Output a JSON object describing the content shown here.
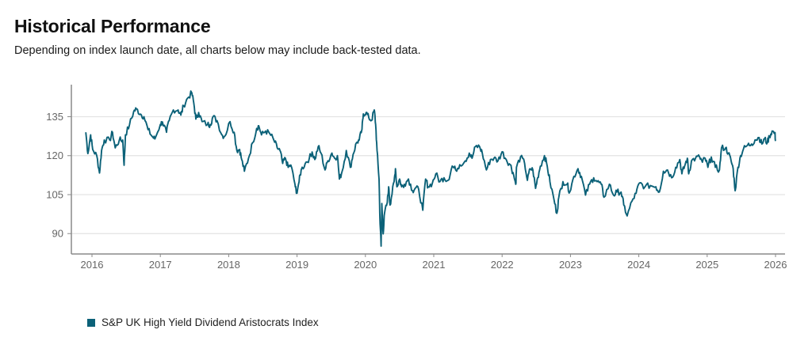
{
  "header": {
    "title": "Historical Performance",
    "subtitle": "Depending on index launch date, all charts below may include back-tested data."
  },
  "colors": {
    "series": "#0b6178",
    "grid": "#e3e3e3",
    "axis": "#8a8a8a",
    "tick_text": "#666666"
  },
  "chart_data": {
    "type": "line",
    "title": "Historical Performance",
    "xlabel": "",
    "ylabel": "",
    "xlim": [
      2015.7,
      2026.0
    ],
    "ylim": [
      80,
      148
    ],
    "x_ticks": [
      2016,
      2017,
      2018,
      2019,
      2020,
      2021,
      2022,
      2023,
      2024,
      2025,
      2026
    ],
    "x_tick_labels": [
      "2016",
      "2017",
      "2018",
      "2019",
      "2020",
      "2021",
      "2022",
      "2023",
      "2024",
      "2025",
      "2026"
    ],
    "y_ticks": [
      90,
      105,
      120,
      135
    ],
    "y_tick_labels": [
      "90",
      "105",
      "120",
      "135"
    ],
    "grid": "horizontal",
    "legend_position": "bottom-left",
    "series": [
      {
        "name": "S&P UK High Yield Dividend Aristocrats Index",
        "points": [
          [
            2015.91,
            129.0
          ],
          [
            2015.94,
            120.8
          ],
          [
            2015.98,
            128.0
          ],
          [
            2016.01,
            122.4
          ],
          [
            2016.07,
            120.0
          ],
          [
            2016.11,
            113.3
          ],
          [
            2016.14,
            122.0
          ],
          [
            2016.18,
            126.0
          ],
          [
            2016.26,
            126.0
          ],
          [
            2016.3,
            129.0
          ],
          [
            2016.34,
            123.0
          ],
          [
            2016.4,
            126.0
          ],
          [
            2016.45,
            126.0
          ],
          [
            2016.47,
            116.3
          ],
          [
            2016.49,
            128.0
          ],
          [
            2016.55,
            132.0
          ],
          [
            2016.61,
            137.0
          ],
          [
            2016.65,
            138.0
          ],
          [
            2016.71,
            136.0
          ],
          [
            2016.76,
            135.0
          ],
          [
            2016.82,
            130.0
          ],
          [
            2016.88,
            127.4
          ],
          [
            2016.92,
            126.4
          ],
          [
            2017.0,
            132.0
          ],
          [
            2017.03,
            133.0
          ],
          [
            2017.09,
            129.0
          ],
          [
            2017.13,
            133.5
          ],
          [
            2017.19,
            137.6
          ],
          [
            2017.26,
            137.6
          ],
          [
            2017.3,
            135.6
          ],
          [
            2017.34,
            139.2
          ],
          [
            2017.4,
            142.2
          ],
          [
            2017.46,
            144.2
          ],
          [
            2017.49,
            140.2
          ],
          [
            2017.52,
            134.1
          ],
          [
            2017.56,
            136.6
          ],
          [
            2017.61,
            133.1
          ],
          [
            2017.69,
            132.0
          ],
          [
            2017.73,
            132.0
          ],
          [
            2017.77,
            135.0
          ],
          [
            2017.83,
            133.5
          ],
          [
            2017.9,
            128.0
          ],
          [
            2017.94,
            127.4
          ],
          [
            2018.02,
            133.1
          ],
          [
            2018.08,
            129.0
          ],
          [
            2018.12,
            122.0
          ],
          [
            2018.16,
            122.4
          ],
          [
            2018.19,
            118.5
          ],
          [
            2018.23,
            114.0
          ],
          [
            2018.29,
            119.0
          ],
          [
            2018.35,
            125.0
          ],
          [
            2018.41,
            130.5
          ],
          [
            2018.44,
            131.5
          ],
          [
            2018.48,
            128.0
          ],
          [
            2018.54,
            129.5
          ],
          [
            2018.6,
            128.5
          ],
          [
            2018.66,
            126.0
          ],
          [
            2018.71,
            123.0
          ],
          [
            2018.75,
            122.0
          ],
          [
            2018.79,
            117.0
          ],
          [
            2018.83,
            119.0
          ],
          [
            2018.87,
            115.5
          ],
          [
            2018.91,
            116.4
          ],
          [
            2018.97,
            109.0
          ],
          [
            2018.99,
            105.5
          ],
          [
            2019.03,
            110.0
          ],
          [
            2019.06,
            114.5
          ],
          [
            2019.12,
            117.0
          ],
          [
            2019.18,
            119.0
          ],
          [
            2019.22,
            121.4
          ],
          [
            2019.26,
            118.5
          ],
          [
            2019.31,
            123.5
          ],
          [
            2019.35,
            121.0
          ],
          [
            2019.41,
            114.5
          ],
          [
            2019.45,
            118.0
          ],
          [
            2019.51,
            121.0
          ],
          [
            2019.55,
            119.0
          ],
          [
            2019.59,
            120.0
          ],
          [
            2019.62,
            111.0
          ],
          [
            2019.66,
            114.0
          ],
          [
            2019.72,
            122.0
          ],
          [
            2019.78,
            115.5
          ],
          [
            2019.82,
            120.5
          ],
          [
            2019.87,
            125.0
          ],
          [
            2019.91,
            126.0
          ],
          [
            2019.95,
            130.2
          ],
          [
            2019.97,
            136.1
          ],
          [
            2020.01,
            136.6
          ],
          [
            2020.05,
            134.6
          ],
          [
            2020.09,
            133.6
          ],
          [
            2020.13,
            137.6
          ],
          [
            2020.15,
            132.0
          ],
          [
            2020.17,
            122.0
          ],
          [
            2020.2,
            111.0
          ],
          [
            2020.21,
            97.8
          ],
          [
            2020.23,
            85.2
          ],
          [
            2020.24,
            101.6
          ],
          [
            2020.26,
            89.9
          ],
          [
            2020.28,
            97.8
          ],
          [
            2020.32,
            102.0
          ],
          [
            2020.34,
            108.0
          ],
          [
            2020.36,
            101.0
          ],
          [
            2020.38,
            104.0
          ],
          [
            2020.42,
            110.0
          ],
          [
            2020.44,
            115.0
          ],
          [
            2020.46,
            108.0
          ],
          [
            2020.5,
            111.0
          ],
          [
            2020.53,
            108.0
          ],
          [
            2020.57,
            109.0
          ],
          [
            2020.63,
            111.0
          ],
          [
            2020.69,
            106.5
          ],
          [
            2020.73,
            107.5
          ],
          [
            2020.78,
            107.0
          ],
          [
            2020.84,
            99.0
          ],
          [
            2020.88,
            111.0
          ],
          [
            2020.92,
            108.0
          ],
          [
            2020.98,
            109.5
          ],
          [
            2021.03,
            113.0
          ],
          [
            2021.09,
            110.0
          ],
          [
            2021.15,
            111.5
          ],
          [
            2021.21,
            110.5
          ],
          [
            2021.27,
            116.0
          ],
          [
            2021.32,
            114.5
          ],
          [
            2021.38,
            116.5
          ],
          [
            2021.46,
            118.0
          ],
          [
            2021.52,
            121.0
          ],
          [
            2021.56,
            119.0
          ],
          [
            2021.61,
            123.5
          ],
          [
            2021.67,
            123.5
          ],
          [
            2021.71,
            121.0
          ],
          [
            2021.77,
            114.5
          ],
          [
            2021.83,
            118.5
          ],
          [
            2021.88,
            119.0
          ],
          [
            2021.94,
            118.0
          ],
          [
            2022.0,
            121.5
          ],
          [
            2022.06,
            118.5
          ],
          [
            2022.12,
            116.5
          ],
          [
            2022.16,
            113.5
          ],
          [
            2022.2,
            109.0
          ],
          [
            2022.21,
            115.5
          ],
          [
            2022.27,
            119.6
          ],
          [
            2022.33,
            117.0
          ],
          [
            2022.37,
            110.5
          ],
          [
            2022.41,
            115.0
          ],
          [
            2022.45,
            114.5
          ],
          [
            2022.49,
            107.4
          ],
          [
            2022.52,
            111.5
          ],
          [
            2022.56,
            116.0
          ],
          [
            2022.62,
            120.0
          ],
          [
            2022.66,
            116.0
          ],
          [
            2022.7,
            110.0
          ],
          [
            2022.76,
            103.0
          ],
          [
            2022.8,
            97.8
          ],
          [
            2022.83,
            104.0
          ],
          [
            2022.89,
            110.0
          ],
          [
            2022.95,
            109.0
          ],
          [
            2022.99,
            106.0
          ],
          [
            2023.05,
            112.0
          ],
          [
            2023.11,
            115.0
          ],
          [
            2023.16,
            112.0
          ],
          [
            2023.22,
            104.8
          ],
          [
            2023.28,
            109.0
          ],
          [
            2023.34,
            111.5
          ],
          [
            2023.39,
            110.0
          ],
          [
            2023.45,
            109.0
          ],
          [
            2023.49,
            104.0
          ],
          [
            2023.57,
            109.0
          ],
          [
            2023.63,
            104.8
          ],
          [
            2023.68,
            106.0
          ],
          [
            2023.74,
            106.0
          ],
          [
            2023.78,
            101.0
          ],
          [
            2023.83,
            96.8
          ],
          [
            2023.9,
            102.5
          ],
          [
            2023.96,
            105.5
          ],
          [
            2024.01,
            109.5
          ],
          [
            2024.09,
            108.0
          ],
          [
            2024.17,
            108.5
          ],
          [
            2024.25,
            108.0
          ],
          [
            2024.3,
            106.0
          ],
          [
            2024.36,
            114.0
          ],
          [
            2024.42,
            114.5
          ],
          [
            2024.48,
            111.5
          ],
          [
            2024.54,
            115.5
          ],
          [
            2024.6,
            118.5
          ],
          [
            2024.63,
            113.0
          ],
          [
            2024.67,
            116.0
          ],
          [
            2024.71,
            119.0
          ],
          [
            2024.73,
            113.0
          ],
          [
            2024.77,
            118.0
          ],
          [
            2024.83,
            119.0
          ],
          [
            2024.89,
            119.5
          ],
          [
            2024.93,
            117.5
          ],
          [
            2024.97,
            119.0
          ],
          [
            2025.01,
            115.5
          ],
          [
            2025.06,
            119.5
          ],
          [
            2025.12,
            115.5
          ],
          [
            2025.18,
            114.5
          ],
          [
            2025.21,
            123.0
          ],
          [
            2025.27,
            123.0
          ],
          [
            2025.31,
            121.0
          ],
          [
            2025.35,
            118.0
          ],
          [
            2025.38,
            115.0
          ],
          [
            2025.41,
            106.5
          ],
          [
            2025.45,
            115.5
          ],
          [
            2025.49,
            120.0
          ],
          [
            2025.53,
            122.5
          ],
          [
            2025.59,
            124.0
          ],
          [
            2025.65,
            124.5
          ],
          [
            2025.7,
            126.0
          ],
          [
            2025.76,
            127.0
          ],
          [
            2025.8,
            124.5
          ],
          [
            2025.84,
            126.5
          ],
          [
            2025.88,
            125.0
          ],
          [
            2025.91,
            127.5
          ],
          [
            2025.95,
            129.5
          ],
          [
            2025.99,
            128.5
          ],
          [
            2026.0,
            126.0
          ]
        ]
      }
    ]
  },
  "legend": {
    "items": [
      {
        "label": "S&P UK High Yield Dividend Aristocrats Index",
        "color": "#0b6178"
      }
    ]
  }
}
